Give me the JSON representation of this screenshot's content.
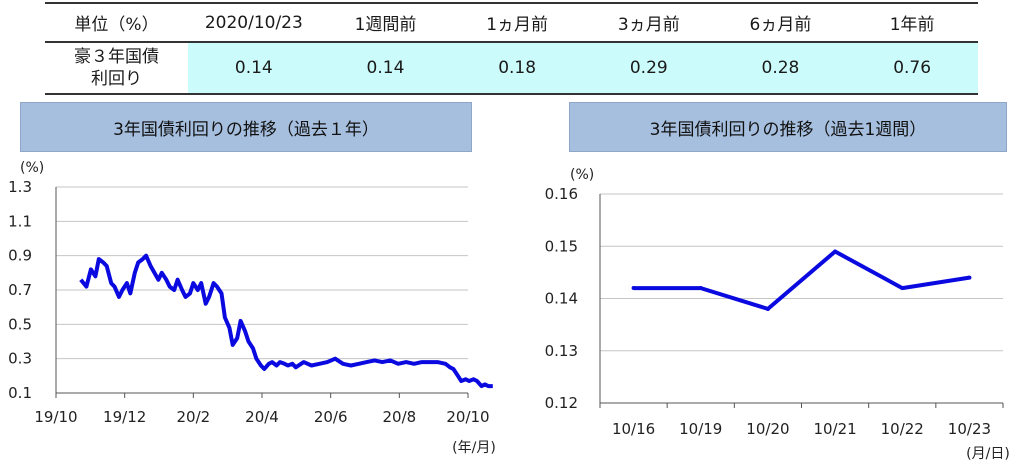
{
  "summary": {
    "header": [
      "単位（%）",
      "2020/10/23",
      "1週間前",
      "1ヵ月前",
      "3ヵ月前",
      "6ヵ月前",
      "1年前"
    ],
    "row_label_line1": "豪３年国債",
    "row_label_line2": "利回り",
    "values": [
      "0.14",
      "0.14",
      "0.18",
      "0.29",
      "0.28",
      "0.76"
    ]
  },
  "chart_data": [
    {
      "type": "line",
      "title": "3年国債利回りの推移（過去１年）",
      "yunit": "(%)",
      "xunit": "(年/月)",
      "ylim": [
        0.1,
        1.3
      ],
      "yticks": [
        "1.3",
        "1.1",
        "0.9",
        "0.7",
        "0.5",
        "0.3",
        "0.1"
      ],
      "xticks": [
        "19/10",
        "19/12",
        "20/2",
        "20/4",
        "20/6",
        "20/8",
        "20/10"
      ],
      "grid": true,
      "series_color": "#0a0ae0",
      "x": [
        "2019-10-23",
        "2019-10-28",
        "2019-11-01",
        "2019-11-05",
        "2019-11-08",
        "2019-11-12",
        "2019-11-15",
        "2019-11-19",
        "2019-11-22",
        "2019-11-26",
        "2019-11-29",
        "2019-12-03",
        "2019-12-06",
        "2019-12-10",
        "2019-12-13",
        "2019-12-17",
        "2019-12-20",
        "2019-12-24",
        "2019-12-31",
        "2020-01-03",
        "2020-01-07",
        "2020-01-10",
        "2020-01-14",
        "2020-01-17",
        "2020-01-21",
        "2020-01-24",
        "2020-01-28",
        "2020-01-31",
        "2020-02-04",
        "2020-02-07",
        "2020-02-11",
        "2020-02-14",
        "2020-02-18",
        "2020-02-21",
        "2020-02-25",
        "2020-02-28",
        "2020-03-03",
        "2020-03-06",
        "2020-03-10",
        "2020-03-13",
        "2020-03-17",
        "2020-03-20",
        "2020-03-24",
        "2020-03-27",
        "2020-03-31",
        "2020-04-03",
        "2020-04-07",
        "2020-04-10",
        "2020-04-14",
        "2020-04-17",
        "2020-04-21",
        "2020-04-24",
        "2020-04-28",
        "2020-05-01",
        "2020-05-08",
        "2020-05-15",
        "2020-05-22",
        "2020-05-29",
        "2020-06-05",
        "2020-06-12",
        "2020-06-19",
        "2020-06-26",
        "2020-07-03",
        "2020-07-10",
        "2020-07-17",
        "2020-07-24",
        "2020-07-31",
        "2020-08-07",
        "2020-08-14",
        "2020-08-21",
        "2020-08-28",
        "2020-09-04",
        "2020-09-11",
        "2020-09-15",
        "2020-09-18",
        "2020-09-22",
        "2020-09-25",
        "2020-09-29",
        "2020-10-02",
        "2020-10-06",
        "2020-10-09",
        "2020-10-13",
        "2020-10-16",
        "2020-10-19",
        "2020-10-23"
      ],
      "y": [
        0.76,
        0.72,
        0.82,
        0.78,
        0.88,
        0.86,
        0.84,
        0.74,
        0.72,
        0.66,
        0.7,
        0.74,
        0.68,
        0.8,
        0.86,
        0.88,
        0.9,
        0.84,
        0.76,
        0.8,
        0.76,
        0.72,
        0.7,
        0.76,
        0.7,
        0.66,
        0.68,
        0.74,
        0.7,
        0.74,
        0.62,
        0.66,
        0.74,
        0.72,
        0.68,
        0.54,
        0.48,
        0.38,
        0.42,
        0.52,
        0.46,
        0.4,
        0.36,
        0.3,
        0.26,
        0.24,
        0.27,
        0.28,
        0.26,
        0.28,
        0.27,
        0.26,
        0.27,
        0.25,
        0.28,
        0.26,
        0.27,
        0.28,
        0.3,
        0.27,
        0.26,
        0.27,
        0.28,
        0.29,
        0.28,
        0.29,
        0.27,
        0.28,
        0.27,
        0.28,
        0.28,
        0.28,
        0.27,
        0.25,
        0.24,
        0.2,
        0.17,
        0.18,
        0.17,
        0.18,
        0.17,
        0.14,
        0.15,
        0.14,
        0.14
      ]
    },
    {
      "type": "line",
      "title": "3年国債利回りの推移（過去1週間）",
      "yunit": "(%)",
      "xunit": "(月/日)",
      "ylim": [
        0.12,
        0.16
      ],
      "yticks": [
        "0.16",
        "0.15",
        "0.14",
        "0.13",
        "0.12"
      ],
      "categories": [
        "10/16",
        "10/19",
        "10/20",
        "10/21",
        "10/22",
        "10/23"
      ],
      "values": [
        0.142,
        0.142,
        0.138,
        0.149,
        0.142,
        0.144
      ],
      "grid": true,
      "series_color": "#0a0ae0"
    }
  ]
}
